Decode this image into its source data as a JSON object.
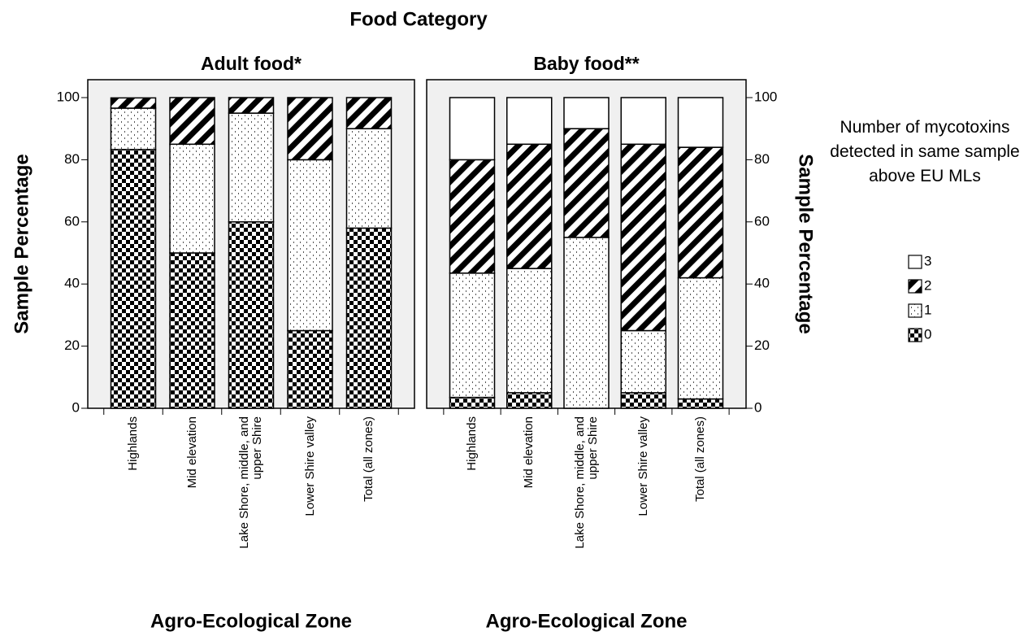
{
  "title": "Food Category",
  "legend_title": "Number of mycotoxins detected in same sample above EU MLs",
  "chart_data": [
    {
      "type": "stacked_bar",
      "title": "Adult food*",
      "xlabel": "Agro-Ecological Zone",
      "ylabel": "Sample Percentage",
      "yaxis_position": "left",
      "categories": [
        "Highlands",
        "Mid elevation",
        "Lake Shore, middle, and upper Shire",
        "Lower Shire valley",
        "Total (all zones)"
      ],
      "ylim": [
        0,
        100
      ],
      "yticks": [
        0,
        20,
        40,
        60,
        80,
        100
      ],
      "series": [
        {
          "name": "0",
          "pattern": "checkerboard",
          "values": [
            83.3,
            50,
            60,
            25,
            58
          ]
        },
        {
          "name": "1",
          "pattern": "dots",
          "values": [
            13.3,
            35,
            35,
            55,
            32
          ]
        },
        {
          "name": "2",
          "pattern": "hatch",
          "values": [
            3.3,
            15,
            5,
            20,
            10
          ]
        },
        {
          "name": "3",
          "pattern": "solid",
          "values": [
            0,
            0,
            0,
            0,
            0
          ]
        }
      ]
    },
    {
      "type": "stacked_bar",
      "title": "Baby food**",
      "xlabel": "Agro-Ecological Zone",
      "ylabel": "Sample Percentage",
      "yaxis_position": "right",
      "categories": [
        "Highlands",
        "Mid elevation",
        "Lake Shore, middle, and upper Shire",
        "Lower Shire valley",
        "Total (all zones)"
      ],
      "ylim": [
        0,
        100
      ],
      "yticks": [
        0,
        20,
        40,
        60,
        80,
        100
      ],
      "series": [
        {
          "name": "0",
          "pattern": "checkerboard",
          "values": [
            3.5,
            5,
            0,
            5,
            3
          ]
        },
        {
          "name": "1",
          "pattern": "dots",
          "values": [
            40,
            40,
            55,
            20,
            39
          ]
        },
        {
          "name": "2",
          "pattern": "hatch",
          "values": [
            36.5,
            40,
            35,
            60,
            42
          ]
        },
        {
          "name": "3",
          "pattern": "solid",
          "values": [
            20,
            15,
            10,
            15,
            16
          ]
        }
      ]
    }
  ]
}
